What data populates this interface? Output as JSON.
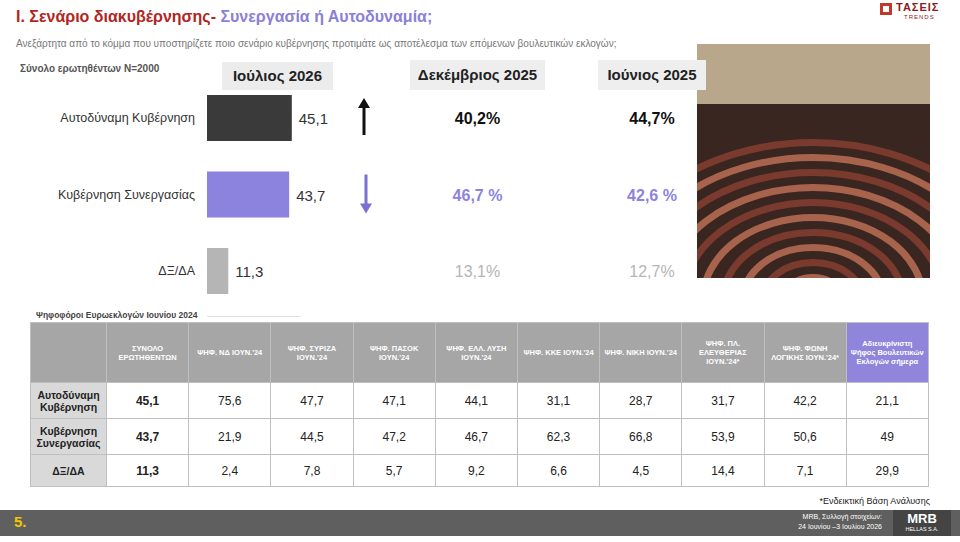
{
  "header": {
    "title_prefix": "Ι. Σενάριο διακυβέρνησης- ",
    "title_highlight": "Συνεργασία ή Αυτοδυναμία;",
    "question": "Ανεξάρτητα από το κόμμα που υποστηρίζετε ποιο σενάριο κυβέρνησης προτιμάτε ως αποτέλεσμα των επόμενων βουλευτικών εκλογών;",
    "base": "Σύνολο ερωτηθέντων N=2000",
    "logo": [
      "ΤΑΣΕΙΣ",
      "TRENDS"
    ]
  },
  "chart_data": {
    "type": "bar",
    "orientation": "horizontal",
    "title": "Ιούλιος 2026",
    "categories": [
      "Αυτοδύναμη Κυβέρνηση",
      "Κυβέρνηση Συνεργασίας",
      "ΔΞ/ΔΑ"
    ],
    "values": [
      45.1,
      43.7,
      11.3
    ],
    "value_labels": [
      "45,1",
      "43,7",
      "11,3"
    ],
    "colors": [
      "#3a3a3a",
      "#8c83de",
      "#b5b5b5"
    ],
    "xlim": [
      0,
      50
    ],
    "xticks": [],
    "data_labels": true,
    "tick_labels": "y",
    "grid": false
  },
  "comparison": [
    {
      "title": "Δεκέμβριος 2025",
      "values": [
        "40,2%",
        "46,7 %",
        "13,1%"
      ]
    },
    {
      "title": "Ιούνιος 2025",
      "values": [
        "44,7%",
        "42,6 %",
        "12,7%"
      ]
    }
  ],
  "table": {
    "caption": "Ψηφοφόροι Ευρωεκλογών Ιουνίου 2024",
    "columns": [
      "ΣΥΝΟΛΟ ΕΡΩΤΗΘΕΝΤΩΝ",
      "ΨΗΦ. ΝΔ ΙΟΥΝ.'24",
      "ΨΗΦ. ΣΥΡΙΖΑ ΙΟΥΝ.'24",
      "ΨΗΦ. ΠΑΣΟΚ ΙΟΥΝ.'24",
      "ΨΗΦ. ΕΛΛ. ΛΥΣΗ ΙΟΥΝ.'24",
      "ΨΗΦ. ΚΚΕ ΙΟΥΝ.'24",
      "ΨΗΦ. ΝΙΚΗ ΙΟΥΝ.'24",
      "ΨΗΦ. ΠΛ. ΕΛΕΥΘΕΡΙΑΣ ΙΟΥΝ.'24*",
      "ΨΗΦ. ΦΩΝΗ ΛΟΓΙΚΗΣ ΙΟΥΝ.'24*",
      "Αδιευκρίνιστη Ψήφος Βουλευτικών Εκλογών σήμερα"
    ],
    "rows": [
      [
        "Αυτοδύναμη Κυβέρνηση",
        "45,1",
        "75,6",
        "47,7",
        "47,1",
        "44,1",
        "31,1",
        "28,7",
        "31,7",
        "42,2",
        "21,1"
      ],
      [
        "Κυβέρνηση Συνεργασίας",
        "43,7",
        "21,9",
        "44,5",
        "47,2",
        "46,7",
        "62,3",
        "66,8",
        "53,9",
        "50,6",
        "49"
      ],
      [
        "ΔΞ/ΔΑ",
        "11,3",
        "2,4",
        "7,8",
        "5,7",
        "9,2",
        "6,6",
        "4,5",
        "14,4",
        "7,1",
        "29,9"
      ]
    ]
  },
  "footer": {
    "note": "*Ενδεικτική Βάση Ανάλυσης",
    "page": "5.",
    "source": [
      "MRB, Συλλογή στοιχείων:",
      "24 Ιουνίου –3 Ιουλίου 2026"
    ],
    "logo": [
      "MRB",
      "HELLAS S.A."
    ]
  }
}
